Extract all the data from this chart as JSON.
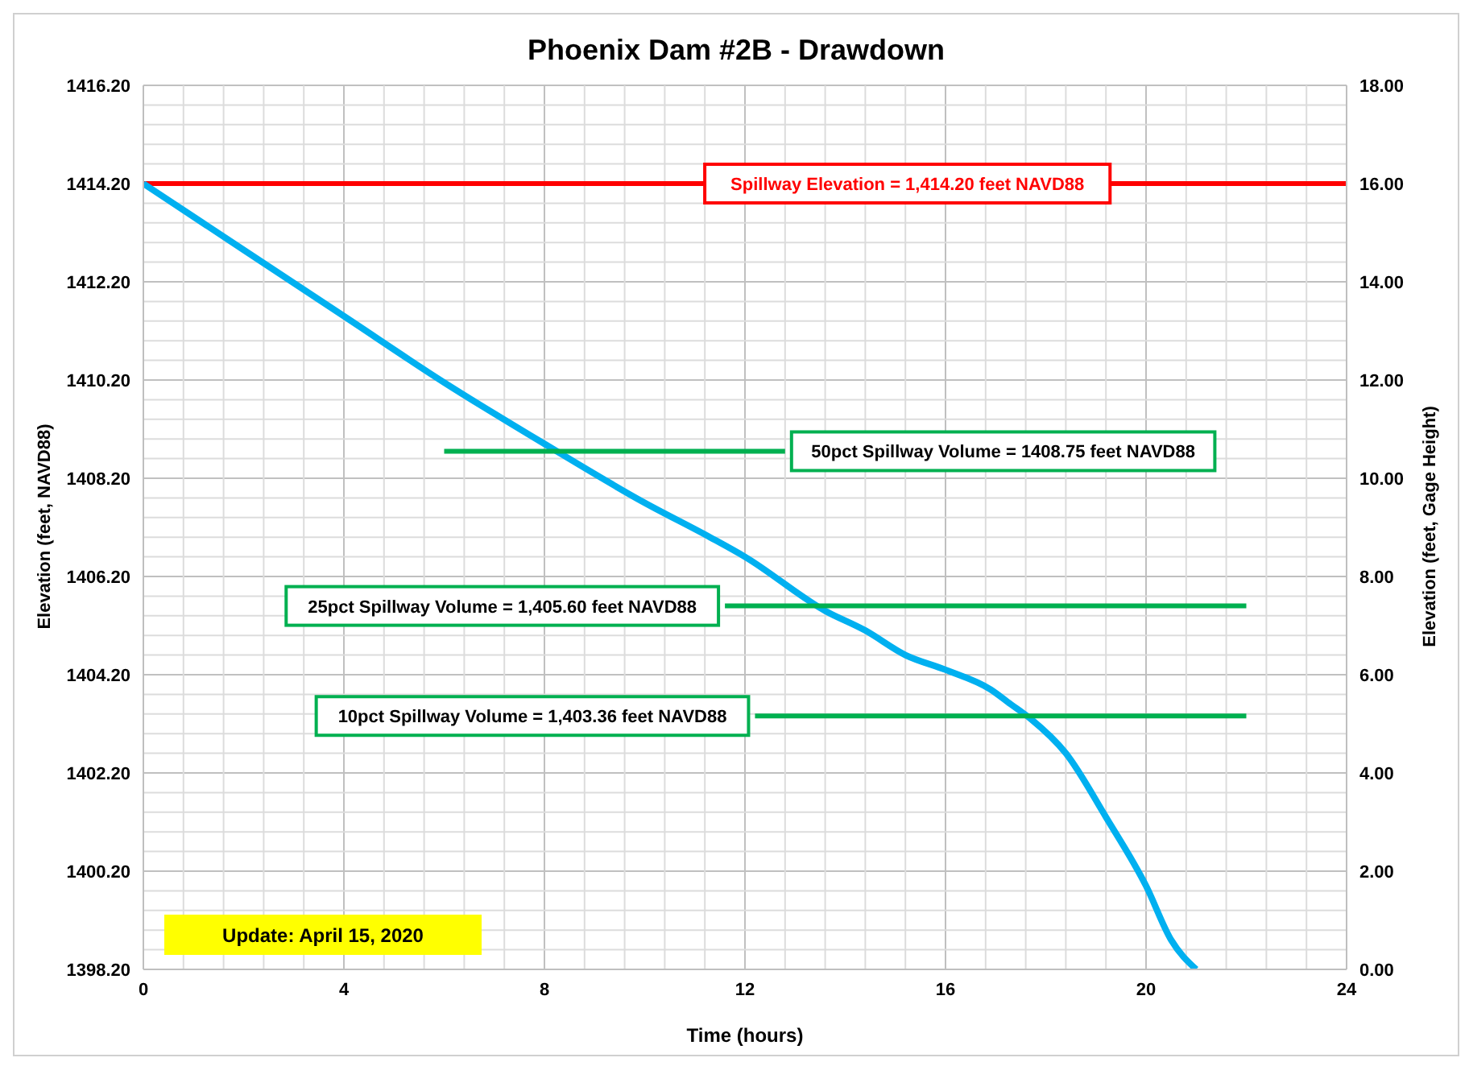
{
  "chart_data": {
    "type": "line",
    "title": "Phoenix Dam #2B - Drawdown",
    "xlabel": "Time (hours)",
    "ylabel": "Elevation (feet, NAVD88)",
    "y2label": "Elevation (feet, Gage Height)",
    "series": [
      {
        "color": "#00b0f0",
        "x": [
          0,
          2,
          4,
          6,
          8,
          10,
          11.3,
          12,
          13.6,
          14.4,
          15.2,
          16,
          16.9,
          17.3,
          17.7,
          18.4,
          19.2,
          20,
          20.5,
          21
        ],
        "values": [
          1414.2,
          1412.85,
          1411.5,
          1410.15,
          1408.9,
          1407.7,
          1407.0,
          1406.6,
          1405.5,
          1405.1,
          1404.6,
          1404.3,
          1403.9,
          1403.6,
          1403.3,
          1402.6,
          1401.3,
          1399.9,
          1398.8,
          1398.2
        ]
      },
      {
        "name": "50pct Spillway Volume = 1408.75 feet NAVD88",
        "color": "#00b050",
        "x": [
          6,
          12.8
        ],
        "values": [
          1408.75,
          1408.75
        ]
      },
      {
        "name": "25pct Spillway Volume = 1,405.60 feet NAVD88",
        "color": "#00b050",
        "x": [
          11.6,
          22
        ],
        "values": [
          1405.6,
          1405.6
        ]
      },
      {
        "name": "10pct Spillway Volume = 1,403.36 feet NAVD88",
        "color": "#00b050",
        "x": [
          12.2,
          22
        ],
        "values": [
          1403.36,
          1403.36
        ]
      }
    ],
    "ref_lines": [
      {
        "axis": "y",
        "value": 1414.2,
        "color": "#ff0000",
        "label": "Spillway Elevation = 1,414.20 feet NAVD88"
      }
    ],
    "annotations": [
      "Update: April 15, 2020"
    ],
    "xlim": [
      0,
      24
    ],
    "xticks": [
      0,
      4,
      8,
      12,
      16,
      20,
      24
    ],
    "ylim": [
      1398.2,
      1416.2
    ],
    "yticks": [
      {
        "value": 1398.2,
        "label": "1398.20"
      },
      {
        "value": 1400.2,
        "label": "1400.20"
      },
      {
        "value": 1402.2,
        "label": "1402.20"
      },
      {
        "value": 1404.2,
        "label": "1404.20"
      },
      {
        "value": 1406.2,
        "label": "1406.20"
      },
      {
        "value": 1408.2,
        "label": "1408.20"
      },
      {
        "value": 1410.2,
        "label": "1410.20"
      },
      {
        "value": 1412.2,
        "label": "1412.20"
      },
      {
        "value": 1414.2,
        "label": "1414.20"
      },
      {
        "value": 1416.2,
        "label": "1416.20"
      }
    ],
    "y2lim": [
      0,
      18
    ],
    "y2ticks": [
      {
        "value": 0,
        "label": "0.00"
      },
      {
        "value": 2,
        "label": "2.00"
      },
      {
        "value": 4,
        "label": "4.00"
      },
      {
        "value": 6,
        "label": "6.00"
      },
      {
        "value": 8,
        "label": "8.00"
      },
      {
        "value": 10,
        "label": "10.00"
      },
      {
        "value": 12,
        "label": "12.00"
      },
      {
        "value": 14,
        "label": "14.00"
      },
      {
        "value": 16,
        "label": "16.00"
      },
      {
        "value": 18,
        "label": "18.00"
      }
    ],
    "grid": true,
    "marker": "none",
    "line_style": "solid",
    "legend": false
  }
}
